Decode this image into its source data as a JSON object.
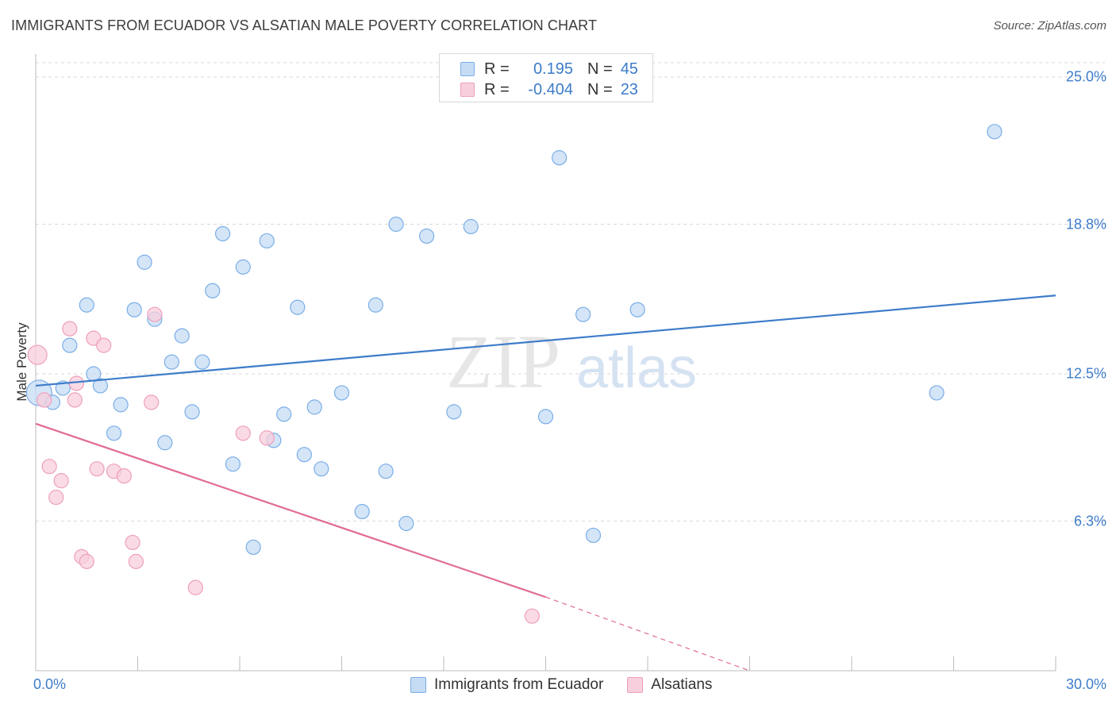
{
  "title": "IMMIGRANTS FROM ECUADOR VS ALSATIAN MALE POVERTY CORRELATION CHART",
  "source": "Source: ZipAtlas.com",
  "watermark": {
    "zip": "ZIP",
    "atlas": "atlas"
  },
  "colors": {
    "blue": "#3d7cc9",
    "blue_fill": "#c6dcf5",
    "blue_stroke": "#7aaee6",
    "pink": "#e06b95",
    "pink_fill": "#f8cfdc",
    "pink_stroke": "#ee9fbb",
    "grid": "#d9d9d9",
    "axis": "#bbbbbb"
  },
  "legend": {
    "rows": [
      {
        "label": "R =",
        "r": "0.195",
        "n_label": "N =",
        "n": "45"
      },
      {
        "label": "R =",
        "r": "-0.404",
        "n_label": "N =",
        "n": "23"
      }
    ]
  },
  "bottom_legend": [
    "Immigrants from Ecuador",
    "Alsatians"
  ],
  "chart_data": {
    "type": "scatter",
    "title": "IMMIGRANTS FROM ECUADOR VS ALSATIAN MALE POVERTY CORRELATION CHART",
    "xlabel": "",
    "ylabel": "Male Poverty",
    "xlim": [
      0,
      30
    ],
    "ylim": [
      0,
      25.0
    ],
    "x_tick_labels": [
      "0.0%",
      "30.0%"
    ],
    "y_ticks": [
      6.3,
      12.5,
      18.8,
      25.0
    ],
    "y_tick_labels": [
      "6.3%",
      "12.5%",
      "18.8%",
      "25.0%"
    ],
    "grid": true,
    "legend_position": "top-center",
    "series": [
      {
        "name": "Immigrants from Ecuador",
        "color": "blue",
        "r": 0.195,
        "n": 45,
        "trend": {
          "x": [
            0,
            30
          ],
          "y": [
            12.0,
            15.8
          ]
        },
        "points": [
          [
            0.1,
            11.7
          ],
          [
            0.5,
            11.3
          ],
          [
            0.8,
            11.9
          ],
          [
            1.0,
            13.7
          ],
          [
            1.5,
            15.4
          ],
          [
            1.7,
            12.5
          ],
          [
            1.9,
            12.0
          ],
          [
            2.3,
            10.0
          ],
          [
            2.5,
            11.2
          ],
          [
            2.9,
            15.2
          ],
          [
            3.2,
            17.2
          ],
          [
            3.5,
            14.8
          ],
          [
            3.8,
            9.6
          ],
          [
            4.0,
            13.0
          ],
          [
            4.3,
            14.1
          ],
          [
            4.6,
            10.9
          ],
          [
            4.9,
            13.0
          ],
          [
            5.2,
            16.0
          ],
          [
            5.5,
            18.4
          ],
          [
            5.8,
            8.7
          ],
          [
            6.1,
            17.0
          ],
          [
            6.4,
            5.2
          ],
          [
            6.8,
            18.1
          ],
          [
            7.0,
            9.7
          ],
          [
            7.3,
            10.8
          ],
          [
            7.7,
            15.3
          ],
          [
            7.9,
            9.1
          ],
          [
            8.2,
            11.1
          ],
          [
            8.4,
            8.5
          ],
          [
            9.0,
            11.7
          ],
          [
            9.6,
            6.7
          ],
          [
            10.0,
            15.4
          ],
          [
            10.3,
            8.4
          ],
          [
            10.6,
            18.8
          ],
          [
            10.9,
            6.2
          ],
          [
            11.5,
            18.3
          ],
          [
            12.3,
            10.9
          ],
          [
            12.8,
            18.7
          ],
          [
            15.0,
            10.7
          ],
          [
            15.4,
            21.6
          ],
          [
            16.1,
            15.0
          ],
          [
            16.4,
            5.7
          ],
          [
            17.7,
            15.2
          ],
          [
            26.5,
            11.7
          ],
          [
            28.2,
            22.7
          ]
        ]
      },
      {
        "name": "Alsatians",
        "color": "pink",
        "r": -0.404,
        "n": 23,
        "trend": {
          "x": [
            0,
            15.0
          ],
          "y": [
            10.4,
            3.1
          ]
        },
        "trend_dashed": {
          "x": [
            15.0,
            21.0
          ],
          "y": [
            3.1,
            0.0
          ]
        },
        "points": [
          [
            0.05,
            13.3
          ],
          [
            0.25,
            11.4
          ],
          [
            0.4,
            8.6
          ],
          [
            0.6,
            7.3
          ],
          [
            0.75,
            8.0
          ],
          [
            1.0,
            14.4
          ],
          [
            1.15,
            11.4
          ],
          [
            1.2,
            12.1
          ],
          [
            1.35,
            4.8
          ],
          [
            1.5,
            4.6
          ],
          [
            1.7,
            14.0
          ],
          [
            1.8,
            8.5
          ],
          [
            2.0,
            13.7
          ],
          [
            2.3,
            8.4
          ],
          [
            2.6,
            8.2
          ],
          [
            2.85,
            5.4
          ],
          [
            2.95,
            4.6
          ],
          [
            3.4,
            11.3
          ],
          [
            3.5,
            15.0
          ],
          [
            4.7,
            3.5
          ],
          [
            6.1,
            10.0
          ],
          [
            6.8,
            9.8
          ],
          [
            14.6,
            2.3
          ]
        ]
      }
    ]
  }
}
